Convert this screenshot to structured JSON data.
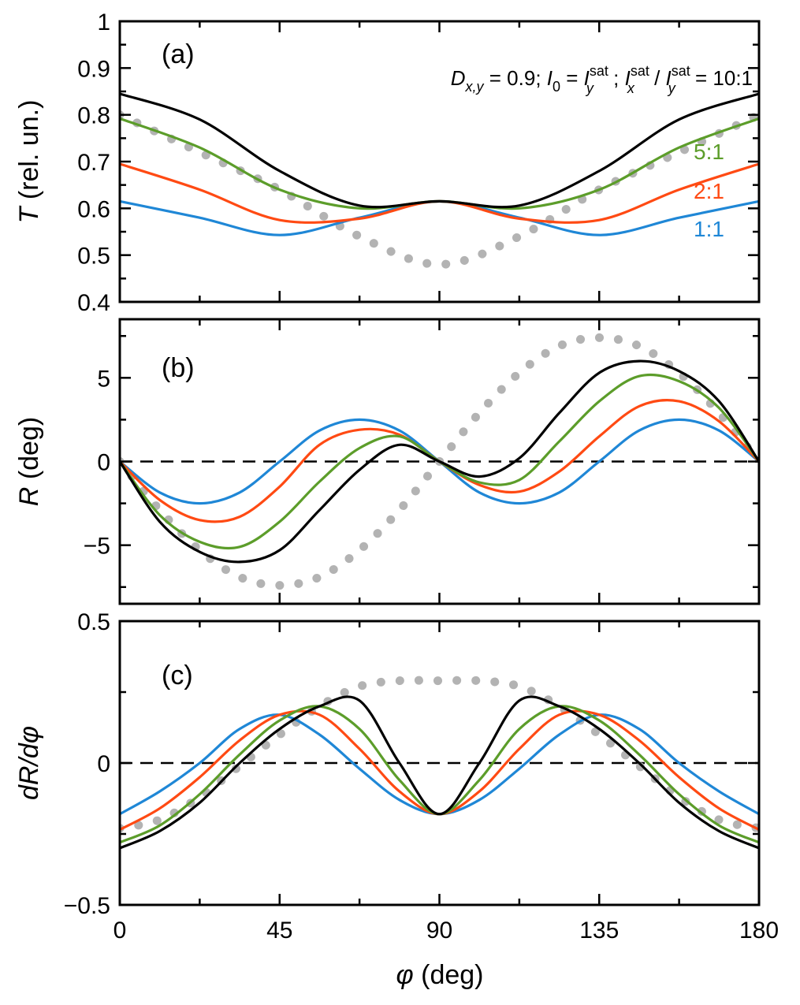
{
  "figure": {
    "annotation": {
      "text": "D_{x,y} = 0.9; I_0 = I_y^{sat} ; I_x^{sat} / I_y^{sat} = 10:1",
      "parts": {
        "D": "D",
        "D_sub": "x,y",
        "eq1": " = 0.9; ",
        "I": "I",
        "I_sub": "0",
        "eq2": " = ",
        "sat": "sat",
        "y": "y",
        "x": "x",
        "sep": " ; ",
        "slash": " / ",
        "eq3": " = 10:1"
      }
    },
    "xlabel": {
      "symbol": "φ",
      "unit": " (deg)"
    }
  },
  "colors": {
    "1:1": "#1f87d6",
    "2:1": "#ff4a13",
    "5:1": "#5c9d2a",
    "10:1": "#000000",
    "dotted": "#b3b3b3",
    "zero_line": "#000000"
  },
  "chart_data": [
    {
      "type": "line",
      "panel": "(a)",
      "ylabel": {
        "symbol": "T",
        "unit": " (rel. un.)"
      },
      "xlim": [
        0,
        180
      ],
      "ylim": [
        0.4,
        1
      ],
      "x_ticks": [
        0,
        45,
        90,
        135,
        180
      ],
      "y_ticks": [
        0.4,
        0.5,
        0.6,
        0.7,
        0.8,
        0.9,
        1
      ],
      "y_tick_labels": [
        "0.4",
        "0.5",
        "0.6",
        "0.7",
        "0.8",
        "0.9",
        "1"
      ],
      "x": [
        0,
        22.5,
        45,
        67.5,
        90,
        112.5,
        135,
        157.5,
        180
      ],
      "series": [
        {
          "name": "1:1",
          "values": [
            0.615,
            0.58,
            0.543,
            0.58,
            0.615,
            0.58,
            0.543,
            0.58,
            0.615
          ]
        },
        {
          "name": "2:1",
          "values": [
            0.695,
            0.64,
            0.575,
            0.578,
            0.615,
            0.578,
            0.575,
            0.64,
            0.695
          ]
        },
        {
          "name": "5:1",
          "values": [
            0.792,
            0.73,
            0.64,
            0.6,
            0.615,
            0.6,
            0.64,
            0.73,
            0.792
          ]
        },
        {
          "values": [
            0.845,
            0.79,
            0.68,
            0.606,
            0.615,
            0.606,
            0.68,
            0.79,
            0.845
          ]
        },
        {
          "style": "dotted",
          "values": [
            0.8,
            0.72,
            0.64,
            0.54,
            0.48,
            0.54,
            0.64,
            0.72,
            0.8
          ]
        }
      ],
      "labels": [
        "5:1",
        "2:1",
        "1:1"
      ]
    },
    {
      "type": "line",
      "panel": "(b)",
      "ylabel": {
        "symbol": "R",
        "unit": " (deg)"
      },
      "xlim": [
        0,
        180
      ],
      "ylim": [
        -8.5,
        8.5
      ],
      "x_ticks": [
        0,
        45,
        90,
        135,
        180
      ],
      "y_ticks": [
        -5,
        0,
        5
      ],
      "y_tick_labels": [
        "−5",
        "0",
        "5"
      ],
      "zero_line": 0,
      "x": [
        0,
        11.25,
        22.5,
        33.75,
        45,
        56.25,
        67.5,
        78.75,
        90,
        101.25,
        112.5,
        123.75,
        135,
        146.25,
        157.5,
        168.75,
        180
      ],
      "series": [
        {
          "name": "1:1",
          "values": [
            0,
            -1.85,
            -2.5,
            -1.85,
            0,
            1.85,
            2.5,
            1.85,
            0,
            -1.85,
            -2.5,
            -1.85,
            0,
            1.85,
            2.5,
            1.85,
            0
          ]
        },
        {
          "name": "2:1",
          "values": [
            0,
            -2.3,
            -3.5,
            -3.3,
            -1.5,
            1.0,
            1.9,
            1.6,
            0,
            -1.4,
            -1.8,
            -0.6,
            1.5,
            3.3,
            3.6,
            2.4,
            0
          ]
        },
        {
          "name": "5:1",
          "values": [
            0,
            -3.2,
            -4.8,
            -5.1,
            -3.6,
            -1.2,
            0.8,
            1.5,
            0,
            -1.25,
            -1.1,
            1.2,
            3.6,
            5.1,
            4.8,
            3.2,
            0
          ]
        },
        {
          "values": [
            0,
            -3.6,
            -5.4,
            -6.0,
            -5.3,
            -2.9,
            -0.5,
            1.0,
            0,
            -0.9,
            0.2,
            2.9,
            5.3,
            6.0,
            5.4,
            3.6,
            0
          ]
        },
        {
          "style": "dotted",
          "values": [
            0,
            -2.9,
            -5.3,
            -6.9,
            -7.4,
            -6.9,
            -5.3,
            -2.9,
            0,
            2.9,
            5.3,
            6.9,
            7.4,
            6.9,
            5.3,
            2.9,
            0
          ]
        }
      ]
    },
    {
      "type": "line",
      "panel": "(c)",
      "ylabel": {
        "symbol": "dR/dφ",
        "unit": ""
      },
      "xlim": [
        0,
        180
      ],
      "ylim": [
        -0.5,
        0.5
      ],
      "x_ticks": [
        0,
        45,
        90,
        135,
        180
      ],
      "x_tick_labels": [
        "0",
        "45",
        "90",
        "135",
        "180"
      ],
      "y_ticks": [
        -0.5,
        0,
        0.5
      ],
      "y_tick_labels": [
        "−0.5",
        "0",
        "0.5"
      ],
      "zero_line": 0,
      "x": [
        0,
        11.25,
        22.5,
        33.75,
        45,
        56.25,
        67.5,
        78.75,
        90,
        101.25,
        112.5,
        123.75,
        135,
        146.25,
        157.5,
        168.75,
        180
      ],
      "series": [
        {
          "name": "1:1",
          "values": [
            -0.18,
            -0.1,
            0.0,
            0.12,
            0.17,
            0.1,
            -0.02,
            -0.13,
            -0.18,
            -0.13,
            -0.02,
            0.1,
            0.17,
            0.12,
            0.0,
            -0.1,
            -0.18
          ]
        },
        {
          "name": "2:1",
          "values": [
            -0.235,
            -0.16,
            -0.05,
            0.08,
            0.17,
            0.17,
            0.05,
            -0.1,
            -0.18,
            -0.1,
            0.05,
            0.17,
            0.17,
            0.08,
            -0.05,
            -0.16,
            -0.235
          ]
        },
        {
          "name": "5:1",
          "values": [
            -0.28,
            -0.22,
            -0.11,
            0.03,
            0.15,
            0.2,
            0.12,
            -0.06,
            -0.18,
            -0.06,
            0.12,
            0.2,
            0.15,
            0.03,
            -0.11,
            -0.22,
            -0.28
          ]
        },
        {
          "values": [
            -0.3,
            -0.24,
            -0.14,
            0.0,
            0.12,
            0.2,
            0.22,
            0.0,
            -0.18,
            0.0,
            0.22,
            0.2,
            0.12,
            0.0,
            -0.14,
            -0.24,
            -0.3
          ]
        },
        {
          "style": "dotted",
          "values": [
            -0.23,
            -0.2,
            -0.12,
            -0.01,
            0.1,
            0.2,
            0.27,
            0.29,
            0.29,
            0.29,
            0.27,
            0.2,
            0.1,
            -0.01,
            -0.12,
            -0.2,
            -0.23
          ]
        }
      ]
    }
  ]
}
